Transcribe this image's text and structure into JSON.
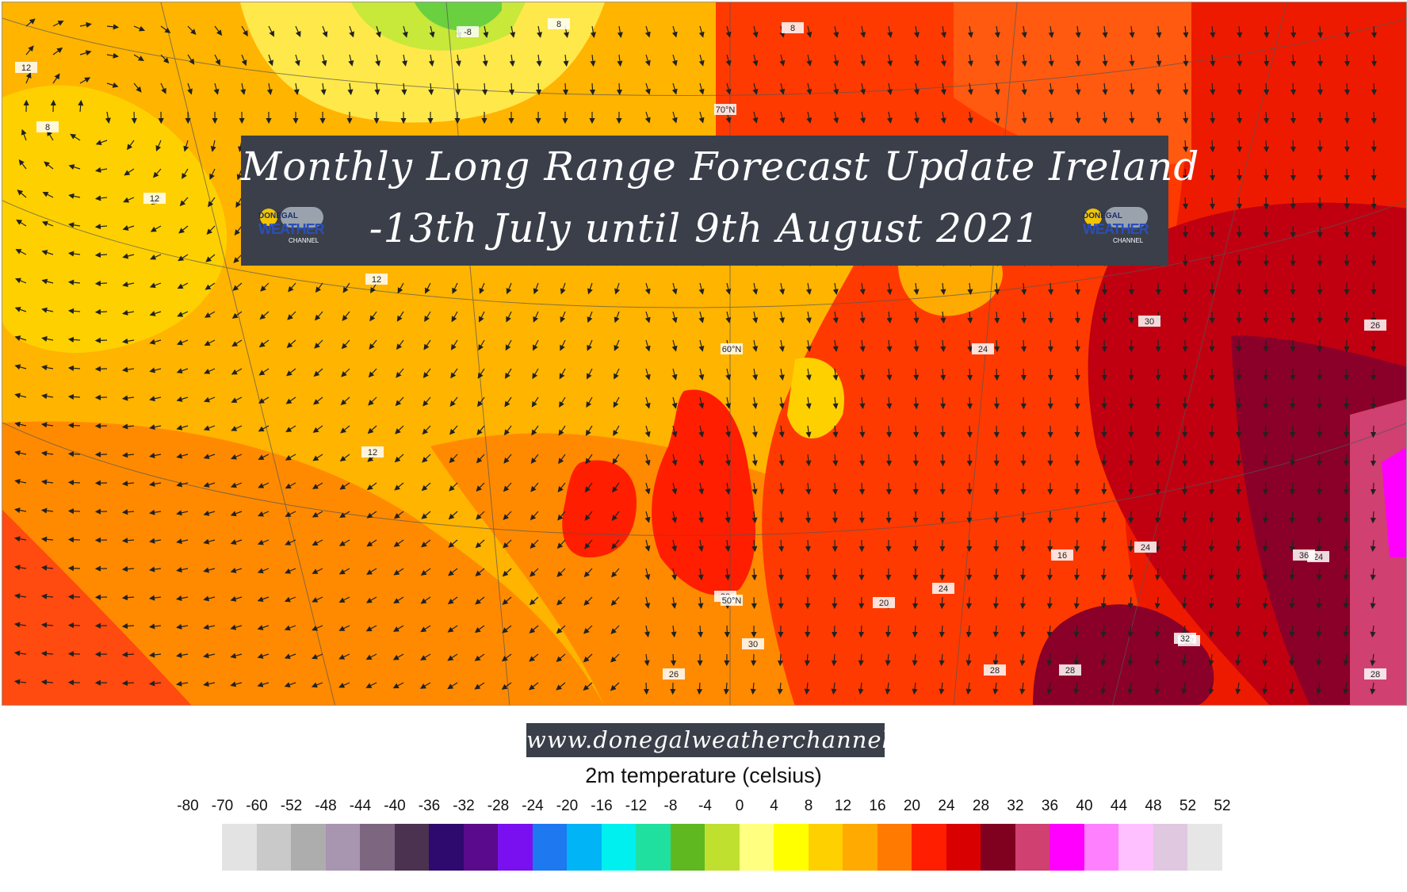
{
  "title": {
    "line1": "Monthly Long Range Forecast Update Ireland",
    "line2": "-13th July until 9th August 2021"
  },
  "logo": {
    "line1": "DONEGAL",
    "line2": "WEATHER",
    "line3": "CHANNEL"
  },
  "website": "www.donegalweatherchannel.ie",
  "legend": {
    "title": "2m temperature (celsius)",
    "ticks": [
      "-80",
      "-70",
      "-60",
      "-52",
      "-48",
      "-44",
      "-40",
      "-36",
      "-32",
      "-28",
      "-24",
      "-20",
      "-16",
      "-12",
      "-8",
      "-4",
      "0",
      "4",
      "8",
      "12",
      "16",
      "20",
      "24",
      "28",
      "32",
      "36",
      "40",
      "44",
      "48",
      "52",
      "52"
    ],
    "colors": [
      "#e3e3e3",
      "#c9c9c9",
      "#adadad",
      "#a895b0",
      "#7d6680",
      "#4a3250",
      "#2e0a6e",
      "#5a0a8c",
      "#7a10f0",
      "#1e78f0",
      "#00b4f5",
      "#00f0f0",
      "#20e0a0",
      "#60b820",
      "#c0e030",
      "#ffff80",
      "#ffff00",
      "#ffd000",
      "#ffaa00",
      "#ff7a00",
      "#ff1e00",
      "#d80000",
      "#800020",
      "#d04070",
      "#ff00ff",
      "#ff80ff",
      "#ffc0ff",
      "#e0c8e0",
      "#e6e6e6"
    ]
  },
  "map": {
    "contour_labels": [
      "12",
      "8",
      "12",
      "8",
      "-8",
      "8",
      "12",
      "12",
      "70°N",
      "60°N",
      "24",
      "24",
      "20",
      "20",
      "50°N",
      "30",
      "26",
      "28",
      "26",
      "16",
      "32",
      "28",
      "24",
      "30",
      "28",
      "24",
      "32",
      "36"
    ]
  }
}
